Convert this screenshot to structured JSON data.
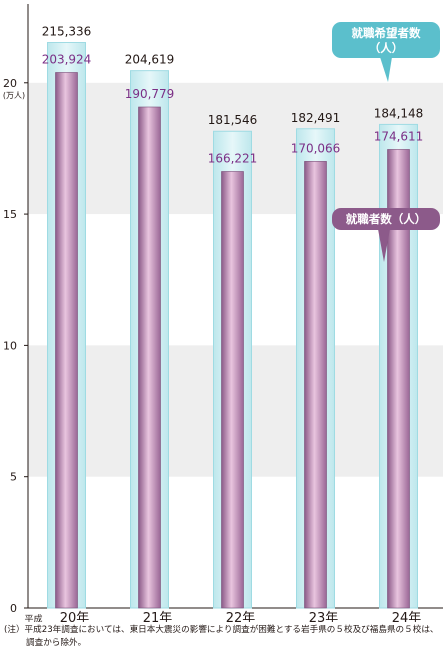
{
  "chart_data": {
    "type": "bar",
    "categories": [
      "20年",
      "21年",
      "22年",
      "23年",
      "24年"
    ],
    "category_prefix": "平成",
    "y_unit_label": "(万人)",
    "ylim": [
      0,
      23
    ],
    "yticks": [
      0,
      5,
      10,
      15,
      20
    ],
    "series": [
      {
        "name": "就職希望者数（人）",
        "values": [
          215336,
          204619,
          181546,
          182491,
          184148
        ],
        "labels": [
          "215,336",
          "204,619",
          "181,546",
          "182,491",
          "184,148"
        ],
        "color": "#7fcfd8"
      },
      {
        "name": "就職者数（人）",
        "values": [
          203924,
          190779,
          166221,
          170066,
          174611
        ],
        "labels": [
          "203,924",
          "190,779",
          "166,221",
          "170,066",
          "174,611"
        ],
        "color": "#c98fbd"
      }
    ],
    "legend": {
      "hope_line1": "就職希望者数",
      "hope_line2": "（人）",
      "employed": "就職者数（人）"
    },
    "grid": "alternating-bands",
    "colors": {
      "hope_callout": "#5bbfcc",
      "employed_callout": "#8c5a8a",
      "band": "#eeeeee"
    }
  },
  "note": {
    "line1": "(注）平成23年調査においては、東日本大震災の影響により調査が困難とする岩手県の５校及び福島県の５校は、",
    "line2": "調査から除外。"
  }
}
